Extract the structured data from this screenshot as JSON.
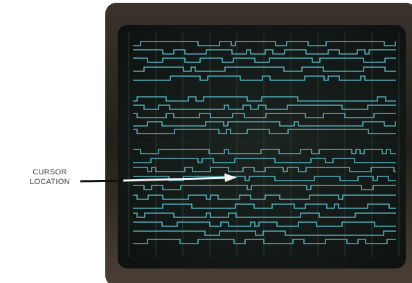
{
  "annotation": {
    "lines": [
      "CURSOR",
      "LOCATION"
    ]
  }
}
